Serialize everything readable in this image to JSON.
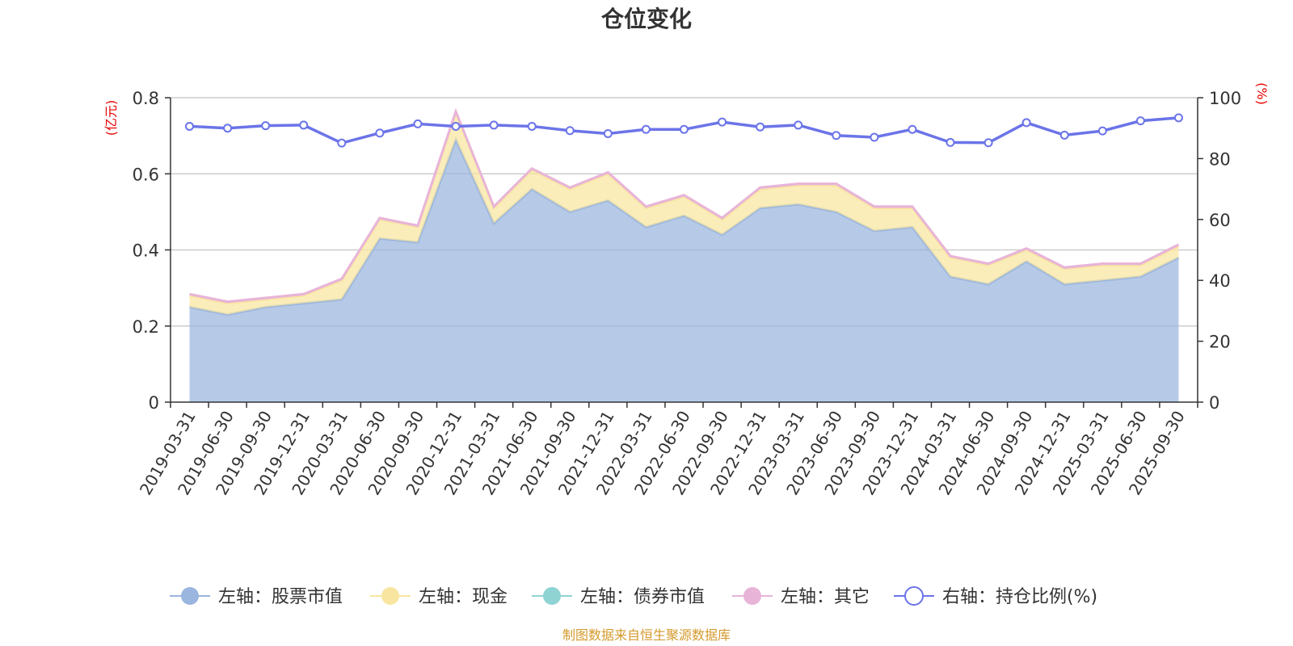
{
  "chart_data": {
    "type": "area",
    "title": "仓位变化",
    "left_unit": "(亿元)",
    "right_unit": "(%)",
    "categories": [
      "2019-03-31",
      "2019-06-30",
      "2019-09-30",
      "2019-12-31",
      "2020-03-31",
      "2020-06-30",
      "2020-09-30",
      "2020-12-31",
      "2021-03-31",
      "2021-06-30",
      "2021-09-30",
      "2021-12-31",
      "2022-03-31",
      "2022-06-30",
      "2022-09-30",
      "2022-12-31",
      "2023-03-31",
      "2023-06-30",
      "2023-09-30",
      "2023-12-31",
      "2024-03-31",
      "2024-06-30",
      "2024-09-30",
      "2024-12-31",
      "2025-03-31",
      "2025-06-30",
      "2025-09-30"
    ],
    "ylim_left": [
      0,
      0.8
    ],
    "yticks_left": [
      "0",
      "0.2",
      "0.4",
      "0.6",
      "0.8"
    ],
    "ylim_right": [
      0,
      100
    ],
    "yticks_right": [
      "0",
      "20",
      "40",
      "60",
      "80",
      "100"
    ],
    "grid": true,
    "series": [
      {
        "name": "左轴：股票市值",
        "axis": "left",
        "stack": true,
        "color": "#9ab5de",
        "values": [
          0.25,
          0.23,
          0.25,
          0.26,
          0.27,
          0.43,
          0.42,
          0.69,
          0.47,
          0.56,
          0.5,
          0.53,
          0.46,
          0.49,
          0.44,
          0.51,
          0.52,
          0.5,
          0.45,
          0.46,
          0.33,
          0.31,
          0.37,
          0.31,
          0.32,
          0.33,
          0.38
        ]
      },
      {
        "name": "左轴：现金",
        "axis": "left",
        "stack": true,
        "color": "#f8e6a0",
        "values": [
          0.03,
          0.03,
          0.02,
          0.02,
          0.05,
          0.05,
          0.04,
          0.07,
          0.04,
          0.05,
          0.06,
          0.07,
          0.05,
          0.05,
          0.04,
          0.05,
          0.05,
          0.07,
          0.06,
          0.05,
          0.05,
          0.05,
          0.03,
          0.04,
          0.04,
          0.03,
          0.03
        ]
      },
      {
        "name": "左轴：债券市值",
        "axis": "left",
        "stack": true,
        "color": "#8fd3d3",
        "values": [
          0,
          0,
          0,
          0,
          0,
          0,
          0,
          0,
          0,
          0,
          0,
          0,
          0,
          0,
          0,
          0,
          0,
          0,
          0,
          0,
          0,
          0,
          0,
          0,
          0,
          0,
          0
        ]
      },
      {
        "name": "左轴：其它",
        "axis": "left",
        "stack": true,
        "color": "#e8b4d8",
        "values": [
          0.004,
          0.004,
          0.004,
          0.004,
          0.004,
          0.004,
          0.004,
          0.004,
          0.004,
          0.004,
          0.004,
          0.004,
          0.004,
          0.004,
          0.004,
          0.004,
          0.004,
          0.004,
          0.004,
          0.004,
          0.004,
          0.004,
          0.004,
          0.004,
          0.004,
          0.004,
          0.004
        ]
      },
      {
        "name": "右轴：持仓比例(%)",
        "axis": "right",
        "stack": false,
        "color": "#6b74e8",
        "values": [
          90.6,
          90.0,
          90.8,
          91.0,
          85.1,
          88.4,
          91.4,
          90.6,
          91.0,
          90.6,
          89.2,
          88.2,
          89.6,
          89.6,
          92.0,
          90.4,
          91.0,
          87.6,
          87.0,
          89.6,
          85.3,
          85.2,
          91.8,
          87.7,
          89.1,
          92.4,
          93.4
        ]
      }
    ],
    "source": "制图数据来自恒生聚源数据库"
  }
}
